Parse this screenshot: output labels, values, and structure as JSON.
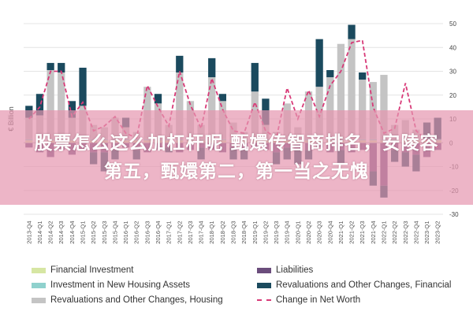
{
  "chart_data": {
    "type": "bar",
    "ylabel": "€ Billion",
    "ylim": [
      -30,
      50
    ],
    "yticks": [
      50,
      40,
      30,
      20,
      10,
      0,
      -10,
      -20,
      -30
    ],
    "categories": [
      "2013-Q4",
      "2014-Q1",
      "2014-Q2",
      "2014-Q3",
      "2014-Q4",
      "2015-Q1",
      "2015-Q2",
      "2015-Q3",
      "2015-Q4",
      "2016-Q1",
      "2016-Q2",
      "2016-Q3",
      "2016-Q4",
      "2017-Q1",
      "2017-Q2",
      "2017-Q3",
      "2017-Q4",
      "2018-Q1",
      "2018-Q2",
      "2018-Q3",
      "2018-Q4",
      "2019-Q1",
      "2019-Q2",
      "2019-Q3",
      "2019-Q4",
      "2020-Q1",
      "2020-Q2",
      "2020-Q3",
      "2020-Q4",
      "2021-Q1",
      "2021-Q2",
      "2021-Q3",
      "2021-Q4",
      "2022-Q1",
      "2022-Q2",
      "2022-Q3",
      "2022-Q4",
      "2023-Q1",
      "2023-Q2"
    ],
    "series": [
      {
        "name": "Financial Investment",
        "color": "#d6e6a3",
        "values": [
          1,
          1,
          1,
          1,
          1,
          1,
          1,
          1,
          1,
          1,
          1,
          1,
          1,
          1,
          1,
          1,
          1,
          1,
          1,
          1,
          1,
          1,
          1,
          1,
          1,
          1,
          1,
          1,
          1,
          1,
          1,
          1,
          1,
          1,
          1,
          1,
          1,
          1,
          1
        ]
      },
      {
        "name": "Investment in New Housing Assets",
        "color": "#8fd1cd",
        "values": [
          0.5,
          0.5,
          0.5,
          0.5,
          0.5,
          0.5,
          0.5,
          0.5,
          0.5,
          0.5,
          0.5,
          0.5,
          0.5,
          0.5,
          0.5,
          0.5,
          0.5,
          0.5,
          0.5,
          0.5,
          0.5,
          0.5,
          0.5,
          0.5,
          0.5,
          0.5,
          0.5,
          0.5,
          0.5,
          0.5,
          0.5,
          0.5,
          0.5,
          0.5,
          0.5,
          0.5,
          0.5,
          0.5,
          0.5
        ]
      },
      {
        "name": "Revaluations and Other Changes, Housing",
        "color": "#c4c4c4",
        "values": [
          9,
          10,
          29,
          28,
          9,
          14,
          6,
          5,
          9,
          5,
          3,
          22,
          15,
          6,
          28,
          16,
          6,
          26,
          16,
          7,
          3,
          20,
          6,
          3,
          15,
          5,
          20,
          22,
          26,
          40,
          42,
          25,
          24,
          27,
          6,
          8,
          4,
          0,
          0
        ]
      },
      {
        "name": "Liabilities",
        "color": "#6b4d7c",
        "values": [
          -2,
          -4,
          -6,
          -3,
          -5,
          -3,
          -4,
          -4,
          -3,
          -2,
          -3,
          -4,
          -3,
          -2,
          -4,
          -3,
          -2,
          -3,
          -4,
          -2,
          -3,
          -2,
          -3,
          -4,
          -2,
          -3,
          -3,
          -2,
          -4,
          -3,
          -4,
          -3,
          -12,
          -18,
          -3,
          -4,
          -5,
          -6,
          -3
        ]
      },
      {
        "name": "Revaluations and Other Changes, Financial",
        "color": "#1b4a5e",
        "values": [
          5,
          9,
          3,
          4,
          7,
          16,
          -5,
          -8,
          -4,
          4,
          -4,
          0,
          4,
          -2,
          7,
          0,
          -5,
          8,
          3,
          -5,
          -4,
          12,
          11,
          -5,
          -5,
          -6,
          -4,
          20,
          3,
          -6,
          6,
          3,
          -6,
          -5,
          -5,
          -6,
          -7,
          7,
          9
        ]
      }
    ],
    "line": {
      "name": "Change in Net Worth",
      "color": "#d83a78",
      "values": [
        10,
        15,
        30,
        30,
        11,
        17,
        5,
        7,
        11,
        4,
        2,
        24,
        15,
        7,
        30,
        16,
        6,
        27,
        14,
        5,
        4,
        17,
        5,
        2,
        23,
        10,
        22,
        11,
        24,
        30,
        42,
        43,
        15,
        4,
        6,
        25,
        5,
        1,
        -2
      ]
    },
    "legend": [
      {
        "label": "Financial Investment",
        "kind": "bar",
        "color": "#d6e6a3"
      },
      {
        "label": "Investment in New Housing Assets",
        "kind": "bar",
        "color": "#8fd1cd"
      },
      {
        "label": "Revaluations and Other Changes, Housing",
        "kind": "bar",
        "color": "#c4c4c4"
      },
      {
        "label": "Liabilities",
        "kind": "bar",
        "color": "#6b4d7c"
      },
      {
        "label": "Revaluations and Other Changes, Financial",
        "kind": "bar",
        "color": "#1b4a5e"
      },
      {
        "label": "Change in Net Worth",
        "kind": "line",
        "color": "#d83a78"
      }
    ],
    "legend_position": "bottom",
    "grid": true
  },
  "overlay": {
    "line1": "股票怎么这么加杠杆呢 甄嬛传智商排名，安陵容",
    "line2": "第五，甄嬛第二，第一当之无愧"
  }
}
